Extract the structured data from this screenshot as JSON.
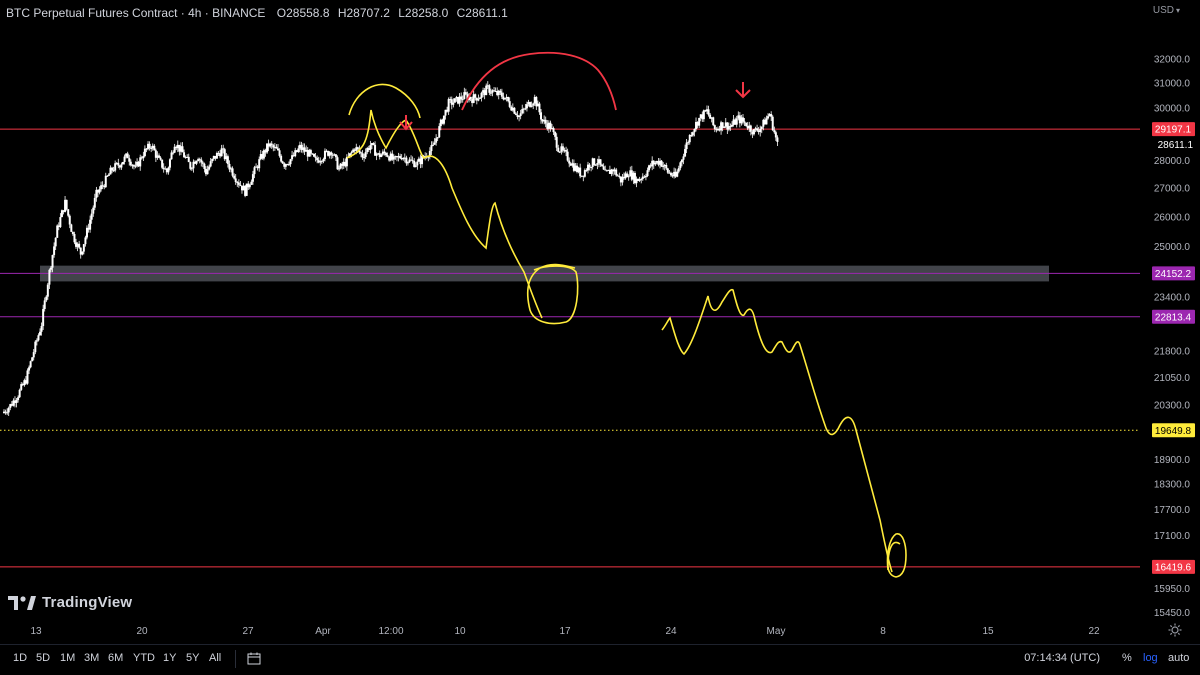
{
  "header": {
    "title": "BTC Perpetual Futures Contract · 4h · BINANCE",
    "open": "O28558.8",
    "high": "H28707.2",
    "low": "L28258.0",
    "close": "C28611.1"
  },
  "currency_label": "USD",
  "logo_text": "TradingView",
  "timeframes": [
    "1D",
    "5D",
    "1M",
    "3M",
    "6M",
    "YTD",
    "1Y",
    "5Y",
    "All"
  ],
  "clock": "07:14:34 (UTC)",
  "scale_buttons": {
    "percent": "%",
    "log": "log",
    "auto": "auto"
  },
  "colors": {
    "background": "#000000",
    "candle": "#ffffff",
    "resistance_line": "#f23645",
    "support_line": "#9c27b0",
    "dotted_line": "#ffeb3b",
    "drawing_yellow": "#ffeb3b",
    "drawing_red": "#f23645",
    "zone": "#787b86"
  },
  "chart_data": {
    "type": "candlestick",
    "symbol": "BTC Perpetual Futures Contract",
    "interval": "4h",
    "exchange": "BINANCE",
    "scale": "log",
    "y_ticks": [
      32000,
      31000,
      30000,
      28000,
      27000,
      26000,
      25000,
      23400,
      21800,
      21050,
      20300,
      18900,
      18300,
      17700,
      17100,
      15950,
      15450
    ],
    "y_tick_labels": [
      "32000.0",
      "31000.0",
      "30000.0",
      "28000.0",
      "27000.0",
      "26000.0",
      "25000.0",
      "23400.0",
      "21800.0",
      "21050.0",
      "20300.0",
      "18900.0",
      "18300.0",
      "17700.0",
      "17100.0",
      "15950.0",
      "15450.0"
    ],
    "x_ticks": [
      "13",
      "20",
      "27",
      "Apr",
      "12:00",
      "10",
      "17",
      "24",
      "May",
      "8",
      "15",
      "22"
    ],
    "last_price": "28611.1",
    "price_lines": [
      {
        "value": 29197.1,
        "label": "29197.1",
        "color": "#f23645",
        "style": "solid"
      },
      {
        "value": 24152.2,
        "label": "24152.2",
        "color": "#9c27b0",
        "style": "solid"
      },
      {
        "value": 22813.4,
        "label": "22813.4",
        "color": "#9c27b0",
        "style": "solid"
      },
      {
        "value": 19649.8,
        "label": "19649.8",
        "color": "#ffeb3b",
        "style": "dotted"
      },
      {
        "value": 16419.6,
        "label": "16419.6",
        "color": "#f23645",
        "style": "solid"
      }
    ],
    "zone": {
      "from": 23900,
      "to": 24400,
      "color": "#787b86"
    },
    "close_path": [
      [
        20100,
        20300,
        20600,
        21000,
        21800,
        22600,
        24200,
        25600,
        26500,
        25400
      ],
      [
        24800,
        25700,
        26800,
        27200,
        27700,
        27900,
        28200,
        27700,
        28300,
        28600
      ],
      [
        28000,
        27600,
        28700,
        28300,
        27800,
        28200,
        27600,
        28100,
        28400,
        27800
      ],
      [
        27300,
        26900,
        27500,
        28100,
        28600,
        28400,
        27900,
        28100,
        28500,
        28300
      ],
      [
        28000,
        28200,
        28400,
        27700,
        28000,
        28500,
        28200,
        28600,
        28200,
        28300
      ],
      [
        28000,
        28200,
        28000,
        27900,
        28200,
        28500,
        29400,
        30200,
        30300,
        30500
      ],
      [
        30400,
        30500,
        30800,
        30600,
        30500,
        30100,
        29700,
        30100,
        30400,
        29500
      ],
      [
        29300,
        28500,
        28200,
        27800,
        27500,
        27900,
        28000,
        27500,
        27700,
        27300
      ],
      [
        27600,
        27300,
        27500,
        27900,
        28000,
        27600,
        27400,
        28300,
        29100,
        29600
      ],
      [
        29900,
        29200,
        29400,
        29300,
        29600,
        29400,
        29100,
        29300,
        29800,
        28611
      ]
    ]
  }
}
